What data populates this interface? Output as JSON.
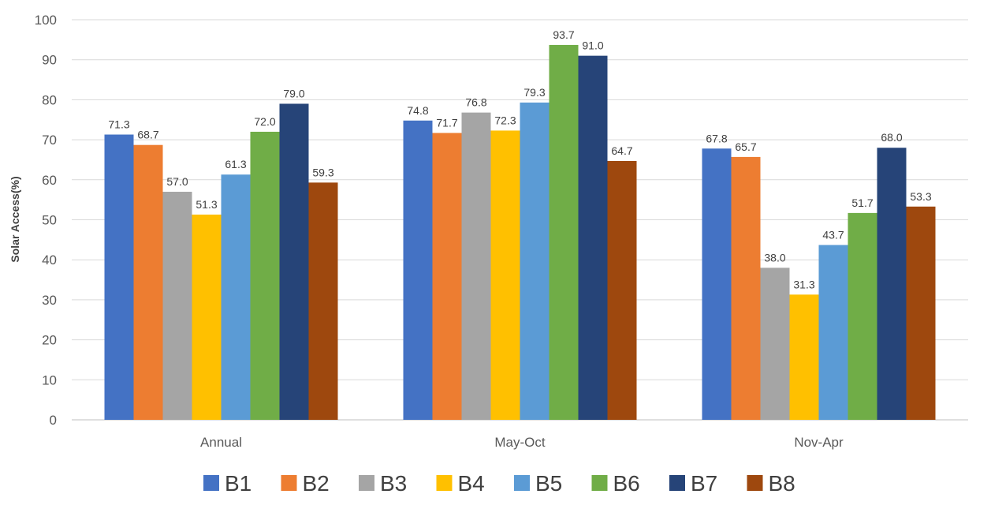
{
  "chart_data": {
    "type": "bar",
    "title": "",
    "xlabel": "",
    "ylabel": "Solar Access(%)",
    "ylim": [
      0,
      100
    ],
    "yticks": [
      0,
      10,
      20,
      30,
      40,
      50,
      60,
      70,
      80,
      90,
      100
    ],
    "grid": true,
    "legend_position": "bottom",
    "categories": [
      "Annual",
      "May-Oct",
      "Nov-Apr"
    ],
    "series": [
      {
        "name": "B1",
        "color": "#4472C4",
        "values": [
          71.3,
          74.8,
          67.8
        ],
        "labels": [
          "71.3",
          "74.8",
          "67.8"
        ]
      },
      {
        "name": "B2",
        "color": "#ED7D31",
        "values": [
          68.7,
          71.7,
          65.7
        ],
        "labels": [
          "68.7",
          "71.7",
          "65.7"
        ]
      },
      {
        "name": "B3",
        "color": "#A5A5A5",
        "values": [
          57.0,
          76.8,
          38.0
        ],
        "labels": [
          "57.0",
          "76.8",
          "38.0"
        ]
      },
      {
        "name": "B4",
        "color": "#FFC000",
        "values": [
          51.3,
          72.3,
          31.3
        ],
        "labels": [
          "51.3",
          "72.3",
          "31.3"
        ]
      },
      {
        "name": "B5",
        "color": "#5B9BD5",
        "values": [
          61.3,
          79.3,
          43.7
        ],
        "labels": [
          "61.3",
          "79.3",
          "43.7"
        ]
      },
      {
        "name": "B6",
        "color": "#70AD47",
        "values": [
          72.0,
          93.7,
          51.7
        ],
        "labels": [
          "72.0",
          "93.7",
          "51.7"
        ]
      },
      {
        "name": "B7",
        "color": "#264478",
        "values": [
          79.0,
          91.0,
          68.0
        ],
        "labels": [
          "79.0",
          "91.0",
          "68.0"
        ]
      },
      {
        "name": "B8",
        "color": "#9E480E",
        "values": [
          59.3,
          64.7,
          53.3
        ],
        "labels": [
          "59.3",
          "64.7",
          "53.3"
        ]
      }
    ]
  }
}
